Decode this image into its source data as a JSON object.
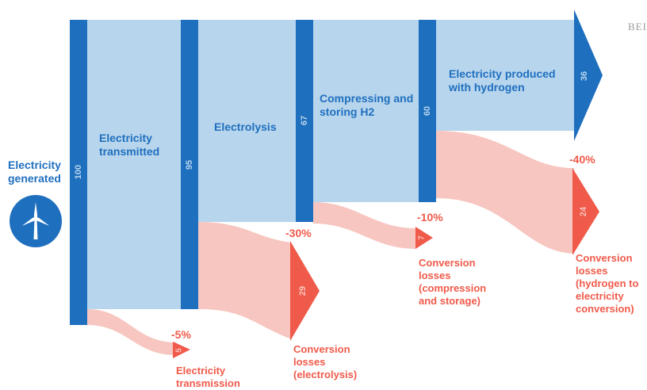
{
  "colors": {
    "bar_blue": "#1f6fbf",
    "flow_blue": "#b7d5ec",
    "loss_pink": "#f7c6c0",
    "loss_red": "#f05a4a",
    "label_blue": "#1f6fbf"
  },
  "brand": {
    "watermark": "BEI"
  },
  "stages": [
    {
      "label": "Electricity generated",
      "value": "100"
    },
    {
      "label": "Electricity transmitted",
      "value": "95"
    },
    {
      "label": "Electrolysis",
      "value": "67"
    },
    {
      "label": "Compressing and storing H2",
      "value": "60"
    },
    {
      "label": "Electricity produced with hydrogen",
      "value": "36"
    }
  ],
  "losses": [
    {
      "percent": "-5%",
      "value": "5",
      "label": "Electricity transmission"
    },
    {
      "percent": "-30%",
      "value": "29",
      "label": "Conversion losses (electrolysis)"
    },
    {
      "percent": "-10%",
      "value": "7",
      "label": "Conversion losses (compression and storage)"
    },
    {
      "percent": "-40%",
      "value": "24",
      "label": "Conversion losses (hydrogen to electricity conversion)"
    }
  ],
  "icons": {
    "generation": "wind-turbine-icon"
  }
}
